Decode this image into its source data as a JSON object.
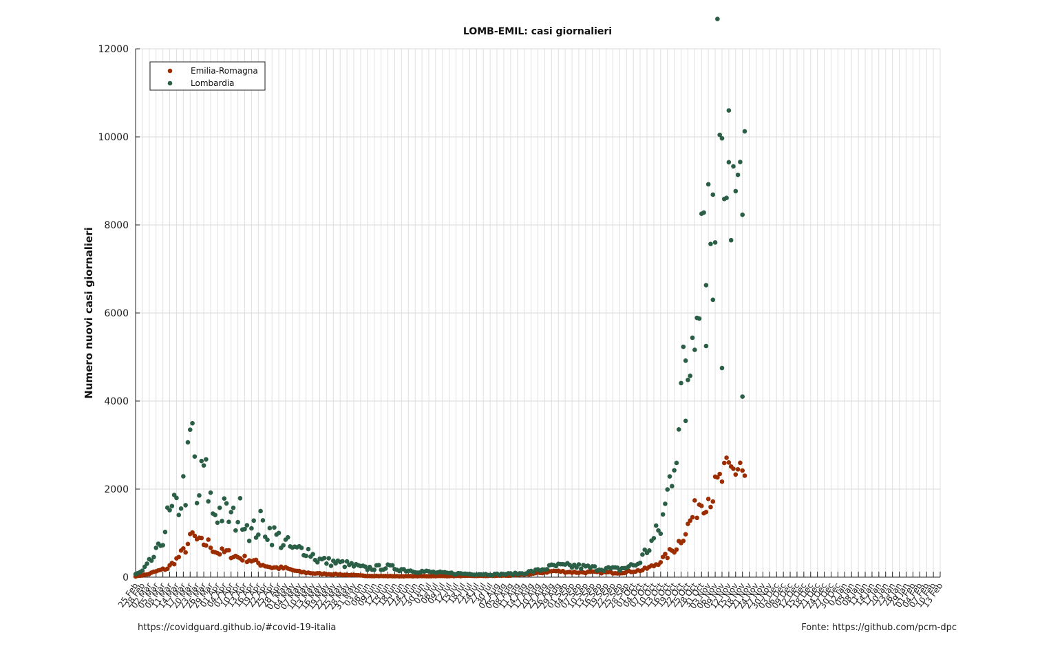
{
  "footer": {
    "left": "https://covidguard.github.io/#covid-19-italia",
    "right": "Fonte: https://github.com/pcm-dpc"
  },
  "chart_data": {
    "type": "scatter",
    "title": "LOMB-EMIL: casi giornalieri",
    "xlabel": "",
    "ylabel": "Numero nuovi casi giornalieri",
    "ylim": [
      0,
      12000
    ],
    "yticks": [
      0,
      2000,
      4000,
      6000,
      8000,
      10000,
      12000
    ],
    "grid": true,
    "legend_position": "top-left",
    "x_start_date": "2020-02-25",
    "x_end_date": "2021-02-13",
    "x_tick_step_days": 3,
    "x_tick_labels_every_days": 3,
    "series": [
      {
        "name": "Emilia-Romagna",
        "color": "#9b2d00",
        "anchors": [
          [
            "2020-02-25",
            18
          ],
          [
            "2020-03-01",
            60
          ],
          [
            "2020-03-05",
            130
          ],
          [
            "2020-03-10",
            200
          ],
          [
            "2020-03-14",
            400
          ],
          [
            "2020-03-18",
            650
          ],
          [
            "2020-03-21",
            950
          ],
          [
            "2020-03-24",
            780
          ],
          [
            "2020-03-28",
            760
          ],
          [
            "2020-04-01",
            560
          ],
          [
            "2020-04-05",
            560
          ],
          [
            "2020-04-10",
            450
          ],
          [
            "2020-04-15",
            400
          ],
          [
            "2020-04-20",
            300
          ],
          [
            "2020-04-25",
            220
          ],
          [
            "2020-05-01",
            200
          ],
          [
            "2020-05-07",
            120
          ],
          [
            "2020-05-15",
            80
          ],
          [
            "2020-05-25",
            60
          ],
          [
            "2020-06-05",
            30
          ],
          [
            "2020-06-20",
            20
          ],
          [
            "2020-07-10",
            25
          ],
          [
            "2020-07-31",
            30
          ],
          [
            "2020-08-10",
            40
          ],
          [
            "2020-08-20",
            90
          ],
          [
            "2020-08-27",
            140
          ],
          [
            "2020-09-05",
            110
          ],
          [
            "2020-09-15",
            110
          ],
          [
            "2020-09-25",
            100
          ],
          [
            "2020-10-05",
            160
          ],
          [
            "2020-10-10",
            260
          ],
          [
            "2020-10-15",
            450
          ],
          [
            "2020-10-20",
            700
          ],
          [
            "2020-10-25",
            1150
          ],
          [
            "2020-10-30",
            1700
          ],
          [
            "2020-11-05",
            1900
          ],
          [
            "2020-11-10",
            2300
          ],
          [
            "2020-11-14",
            2400
          ],
          [
            "2020-11-17",
            2600
          ],
          [
            "2020-11-19",
            2250
          ]
        ]
      },
      {
        "name": "Lombardia",
        "color": "#2a5f46",
        "anchors": [
          [
            "2020-02-25",
            60
          ],
          [
            "2020-02-28",
            130
          ],
          [
            "2020-03-02",
            320
          ],
          [
            "2020-03-06",
            600
          ],
          [
            "2020-03-10",
            1300
          ],
          [
            "2020-03-14",
            1550
          ],
          [
            "2020-03-18",
            2100
          ],
          [
            "2020-03-21",
            3250
          ],
          [
            "2020-03-23",
            1650
          ],
          [
            "2020-03-26",
            2450
          ],
          [
            "2020-03-30",
            1500
          ],
          [
            "2020-04-03",
            1500
          ],
          [
            "2020-04-08",
            1300
          ],
          [
            "2020-04-12",
            1500
          ],
          [
            "2020-04-16",
            1000
          ],
          [
            "2020-04-20",
            1200
          ],
          [
            "2020-04-25",
            1000
          ],
          [
            "2020-04-30",
            800
          ],
          [
            "2020-05-05",
            600
          ],
          [
            "2020-05-10",
            650
          ],
          [
            "2020-05-15",
            400
          ],
          [
            "2020-05-20",
            350
          ],
          [
            "2020-05-27",
            300
          ],
          [
            "2020-06-05",
            200
          ],
          [
            "2020-06-15",
            230
          ],
          [
            "2020-06-25",
            150
          ],
          [
            "2020-07-10",
            90
          ],
          [
            "2020-07-31",
            60
          ],
          [
            "2020-08-12",
            80
          ],
          [
            "2020-08-20",
            150
          ],
          [
            "2020-08-27",
            250
          ],
          [
            "2020-09-05",
            250
          ],
          [
            "2020-09-15",
            200
          ],
          [
            "2020-09-25",
            180
          ],
          [
            "2020-10-03",
            300
          ],
          [
            "2020-10-08",
            700
          ],
          [
            "2020-10-13",
            1100
          ],
          [
            "2020-10-16",
            1850
          ],
          [
            "2020-10-19",
            2900
          ],
          [
            "2020-10-22",
            4100
          ],
          [
            "2020-10-26",
            5000
          ],
          [
            "2020-10-29",
            7300
          ],
          [
            "2020-11-01",
            8900
          ],
          [
            "2020-11-04",
            8000
          ],
          [
            "2020-11-06",
            9800
          ],
          [
            "2020-11-08",
            11500
          ],
          [
            "2020-11-10",
            10900
          ],
          [
            "2020-11-13",
            9200
          ],
          [
            "2020-11-16",
            8000
          ],
          [
            "2020-11-19",
            8400
          ]
        ],
        "outliers": [
          [
            "2020-11-05",
            6300
          ],
          [
            "2020-11-09",
            4750
          ],
          [
            "2020-11-18",
            4100
          ],
          [
            "2020-10-24",
            3550
          ],
          [
            "2020-11-02",
            5250
          ],
          [
            "2020-11-12",
            10600
          ]
        ]
      }
    ],
    "point_count_note": "daily values approximated from plot"
  }
}
